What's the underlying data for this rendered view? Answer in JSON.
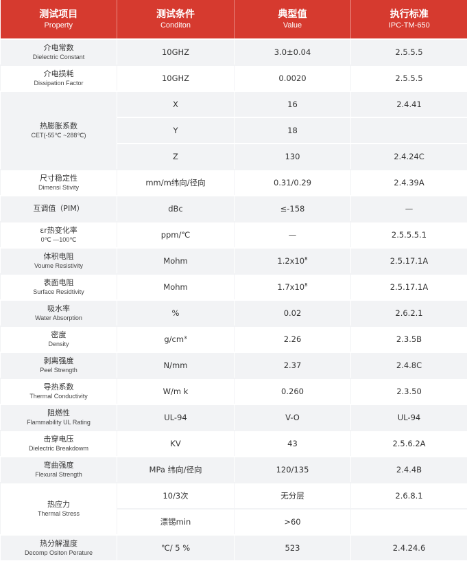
{
  "header": [
    {
      "zh": "测试项目",
      "en": "Property"
    },
    {
      "zh": "测试条件",
      "en": "Conditon"
    },
    {
      "zh": "典型值",
      "en": "Value"
    },
    {
      "zh": "执行标准",
      "en": "IPC-TM-650"
    }
  ],
  "rows": [
    {
      "zh": "介电常数",
      "en": "Dielectric Constant",
      "cond": "10GHZ",
      "value": "3.0±0.04",
      "std": "2.5.5.5"
    },
    {
      "zh": "介电损耗",
      "en": "Dissipation Factor",
      "cond": "10GHZ",
      "value": "0.0020",
      "std": "2.5.5.5"
    },
    {
      "zh": "热膨胀系数",
      "en": "CET(-55℃ ~288℃)",
      "sub": [
        {
          "cond": "X",
          "value": "16",
          "std": "2.4.41"
        },
        {
          "cond": "Y",
          "value": "18",
          "std": ""
        },
        {
          "cond": "Z",
          "value": "130",
          "std": "2.4.24C"
        }
      ]
    },
    {
      "zh": "尺寸稳定性",
      "en": "Dimensi Stivity",
      "cond": "mm/m纬向/径向",
      "value": "0.31/0.29",
      "std": "2.4.39A"
    },
    {
      "zh": "互调值（PIM）",
      "en": "",
      "cond": "dBc",
      "value": "≤-158",
      "std": "—"
    },
    {
      "zh": "εr热变化率",
      "en": "0℃ —100℃",
      "cond": "ppm/℃",
      "value": "—",
      "std": "2.5.5.5.1"
    },
    {
      "zh": "体积电阻",
      "en": "Voume Resistivity",
      "cond": "Mohm",
      "value": "1.2x10",
      "value_exp": "8",
      "std": "2.5.17.1A"
    },
    {
      "zh": "表面电阻",
      "en": "Surface Residtivity",
      "cond": "Mohm",
      "value": "1.7x10",
      "value_exp": "8",
      "std": "2.5.17.1A"
    },
    {
      "zh": "吸水率",
      "en": "Water Absorption",
      "cond": "%",
      "value": "0.02",
      "std": "2.6.2.1"
    },
    {
      "zh": "密度",
      "en": "Density",
      "cond": "g/cm³",
      "value": "2.26",
      "std": "2.3.5B"
    },
    {
      "zh": "剥离强度",
      "en": "Peel Strength",
      "cond": "N/mm",
      "value": "2.37",
      "std": "2.4.8C"
    },
    {
      "zh": "导热系数",
      "en": "Thermal Conductivity",
      "cond": "W/m k",
      "value": "0.260",
      "std": "2.3.50"
    },
    {
      "zh": "阻燃性",
      "en": "Flammability UL Rating",
      "cond": "UL-94",
      "value": "V-O",
      "std": "UL-94"
    },
    {
      "zh": "击穿电压",
      "en": "Dielectric Breakdowm",
      "cond": "KV",
      "value": "43",
      "std": "2.5.6.2A"
    },
    {
      "zh": "弯曲强度",
      "en": "Flexural Strength",
      "cond": "MPa 纬向/径向",
      "value": "120/135",
      "std": "2.4.4B"
    },
    {
      "zh": "热应力",
      "en": "Thermal Stress",
      "sub": [
        {
          "cond": "10/3次",
          "value": "无分层",
          "std": "2.6.8.1"
        },
        {
          "cond": "漂锡min",
          "value": ">60",
          "std": ""
        }
      ]
    },
    {
      "zh": "热分解温度",
      "en": "Decomp Ositon Perature",
      "cond": "℃/ 5 %",
      "value": "523",
      "std": "2.4.24.6"
    }
  ],
  "colors": {
    "header": "#d63a2f",
    "row_alt": "#f2f3f5"
  }
}
